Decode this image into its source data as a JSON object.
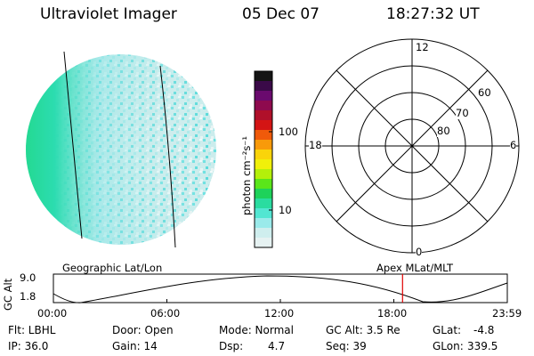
{
  "header": {
    "title": "Ultraviolet Imager",
    "date": "05 Dec 07",
    "time": "18:27:32 UT"
  },
  "colorbar": {
    "unit_label": "photon cm⁻²s⁻¹",
    "ticks": [
      "100",
      "10"
    ],
    "colors": [
      "#141414",
      "#3a0a48",
      "#6a0a6e",
      "#8e0a4e",
      "#b0102a",
      "#d41414",
      "#f05a0a",
      "#f89a0a",
      "#fad40a",
      "#f0f00a",
      "#b4f00a",
      "#5ae61a",
      "#1ed25a",
      "#2adca0",
      "#52e6d2",
      "#9aeaea",
      "#cfeeee",
      "#e6f2f2"
    ]
  },
  "polar_plot": {
    "mlt_labels": [
      "12",
      "18",
      "6",
      "0"
    ],
    "lat_labels": [
      "60",
      "70",
      "80"
    ]
  },
  "timeline": {
    "left_label": "Geographic Lat/Lon",
    "right_label": "Apex  MLat/MLT",
    "axis_title": "GC Alt",
    "y_ticks": [
      "9.0",
      "1.8"
    ],
    "x_ticks": [
      "00:00",
      "06:00",
      "12:00",
      "18:00",
      "23:59"
    ],
    "marker_color": "#e00000"
  },
  "info": {
    "filter": "Flt: LBHL",
    "ip": "IP: 36.0",
    "door": "Door: Open",
    "gain": "Gain: 14",
    "mode": "Mode: Normal",
    "dsp_label": "Dsp:",
    "dsp_value": "4.7",
    "gc_alt": "GC Alt: 3.5 Re",
    "seq": "Seq: 39",
    "glat_label": "GLat:",
    "glat_value": "-4.8",
    "glon_label": "GLon:",
    "glon_value": "339.5"
  },
  "chart_data": {
    "type": "line",
    "x": [
      "00:00",
      "06:00",
      "12:00",
      "18:00",
      "23:59"
    ],
    "y_ticks": [
      1.8,
      9.0
    ],
    "ylabel": "GC Alt",
    "current_time_marker": "18:27:32"
  }
}
